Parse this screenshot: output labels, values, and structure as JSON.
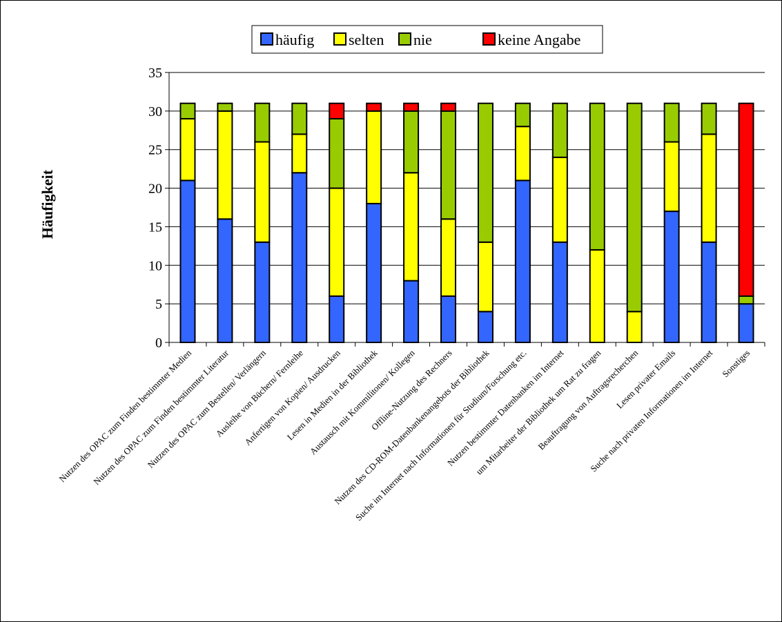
{
  "chart_data": {
    "type": "bar",
    "stacked": true,
    "title": "",
    "xlabel": "",
    "ylabel": "Häufigkeit",
    "ylim": [
      0,
      35
    ],
    "yticks": [
      0,
      5,
      10,
      15,
      20,
      25,
      30,
      35
    ],
    "grid": true,
    "legend_position": "top",
    "categories": [
      "Nutzen des OPAC zum Finden bestimmter Medien",
      "Nutzen des OPAC zum Finden bestimmter Literatur",
      "Nutzen des OPAC zum Bestellen/ Verlängern",
      "Ausleihe von Büchern/ Fernleihe",
      "Anfertigen von Kopien/ Ausdrucken",
      "Lesen in Medien in der Bibliothek",
      "Austausch mit Kommilitonen/ Kollegen",
      "Offline-Nutzung des Rechners",
      "Nutzen des CD-ROM-Datenbankenangebots der Bibliothek",
      "Suche im Internet nach Informationen für Studium/Forschung etc.",
      "Nutzen bestimmter Datenbanken im Internet",
      "um Mitarbeiter der Bibliothek um Rat zu fragen",
      "Beauftragung von Auftragsrecherchen",
      "Lesen privater Emails",
      "Suche nach privaten Informationen im Internet",
      "Sonstiges"
    ],
    "series": [
      {
        "name": "häufig",
        "color": "#3366ff",
        "values": [
          21,
          16,
          13,
          22,
          6,
          18,
          8,
          6,
          4,
          21,
          13,
          0,
          0,
          17,
          13,
          5
        ]
      },
      {
        "name": "selten",
        "color": "#ffff00",
        "values": [
          8,
          14,
          13,
          5,
          14,
          12,
          14,
          10,
          9,
          7,
          11,
          12,
          4,
          9,
          14,
          0
        ]
      },
      {
        "name": "nie",
        "color": "#99cc00",
        "values": [
          2,
          1,
          5,
          4,
          9,
          0,
          8,
          14,
          18,
          3,
          7,
          19,
          27,
          5,
          4,
          1
        ]
      },
      {
        "name": "keine Angabe",
        "color": "#ff0000",
        "values": [
          0,
          0,
          0,
          0,
          2,
          1,
          1,
          1,
          0,
          0,
          0,
          0,
          0,
          0,
          0,
          25
        ]
      }
    ]
  }
}
